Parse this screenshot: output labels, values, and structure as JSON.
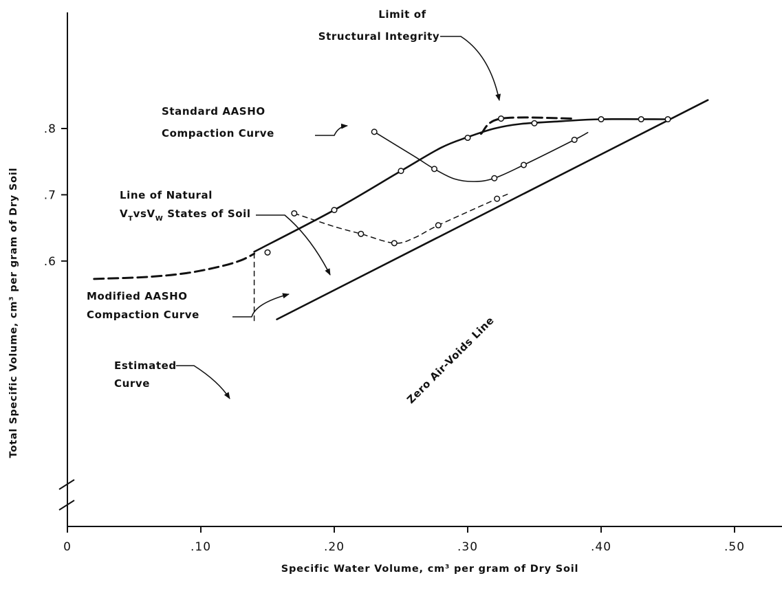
{
  "chart_data": {
    "type": "line",
    "title": "",
    "xlabel": "Specific Water Volume, cm³ per gram of Dry Soil",
    "ylabel": "Total Specific Volume, cm³ per gram of Dry Soil",
    "xlim": [
      0,
      0.54
    ],
    "ylim": [
      0.51,
      0.895
    ],
    "axis_break_y": true,
    "grid": false,
    "x_ticks": [
      {
        "value": 0,
        "label": "0"
      },
      {
        "value": 0.1,
        "label": ".10"
      },
      {
        "value": 0.2,
        "label": ".20"
      },
      {
        "value": 0.3,
        "label": ".30"
      },
      {
        "value": 0.4,
        "label": ".40"
      },
      {
        "value": 0.5,
        "label": ".50"
      }
    ],
    "y_ticks": [
      {
        "value": 0.6,
        "label": ".6"
      },
      {
        "value": 0.7,
        "label": ".7"
      },
      {
        "value": 0.8,
        "label": ".8"
      }
    ],
    "series": [
      {
        "key": "natural",
        "style": "solid-thick",
        "markers": true,
        "points": [
          [
            0.15,
            0.613
          ],
          [
            0.2,
            0.677
          ],
          [
            0.25,
            0.736
          ],
          [
            0.3,
            0.786
          ],
          [
            0.35,
            0.808
          ],
          [
            0.4,
            0.814
          ],
          [
            0.43,
            0.814
          ],
          [
            0.45,
            0.814
          ]
        ],
        "curve": [
          [
            0.14,
            0.614
          ],
          [
            0.2,
            0.677
          ],
          [
            0.25,
            0.736
          ],
          [
            0.28,
            0.771
          ],
          [
            0.3,
            0.787
          ],
          [
            0.32,
            0.8
          ],
          [
            0.34,
            0.807
          ],
          [
            0.37,
            0.811
          ],
          [
            0.4,
            0.814
          ],
          [
            0.45,
            0.814
          ]
        ]
      },
      {
        "key": "estimated",
        "style": "dashed-thick",
        "markers": false,
        "curve": [
          [
            0.02,
            0.573
          ],
          [
            0.06,
            0.576
          ],
          [
            0.09,
            0.582
          ],
          [
            0.115,
            0.592
          ],
          [
            0.13,
            0.601
          ],
          [
            0.14,
            0.611
          ]
        ]
      },
      {
        "key": "standard",
        "style": "solid-thin",
        "markers": true,
        "points": [
          [
            0.23,
            0.795
          ],
          [
            0.275,
            0.739
          ],
          [
            0.32,
            0.725
          ],
          [
            0.342,
            0.745
          ],
          [
            0.38,
            0.783
          ]
        ],
        "curve": [
          [
            0.23,
            0.795
          ],
          [
            0.26,
            0.758
          ],
          [
            0.275,
            0.739
          ],
          [
            0.29,
            0.724
          ],
          [
            0.305,
            0.72
          ],
          [
            0.32,
            0.725
          ],
          [
            0.342,
            0.745
          ],
          [
            0.38,
            0.783
          ],
          [
            0.39,
            0.794
          ]
        ]
      },
      {
        "key": "modified",
        "style": "dashed-thin",
        "markers": true,
        "points": [
          [
            0.17,
            0.672
          ],
          [
            0.22,
            0.641
          ],
          [
            0.245,
            0.627
          ],
          [
            0.278,
            0.654
          ],
          [
            0.322,
            0.694
          ]
        ],
        "curve": [
          [
            0.17,
            0.672
          ],
          [
            0.2,
            0.652
          ],
          [
            0.22,
            0.641
          ],
          [
            0.245,
            0.627
          ],
          [
            0.26,
            0.635
          ],
          [
            0.278,
            0.654
          ],
          [
            0.322,
            0.694
          ],
          [
            0.33,
            0.701
          ]
        ]
      },
      {
        "key": "limit",
        "style": "dashed-thick",
        "markers": true,
        "points": [
          [
            0.325,
            0.815
          ]
        ],
        "curve": [
          [
            0.31,
            0.792
          ],
          [
            0.325,
            0.815
          ],
          [
            0.38,
            0.815
          ]
        ]
      },
      {
        "key": "zero_air_voids",
        "style": "solid-thick",
        "markers": false,
        "curve": [
          [
            0.157,
            0.512
          ],
          [
            0.48,
            0.843
          ]
        ]
      },
      {
        "key": "vertical_ref",
        "style": "dashed-thin",
        "markers": false,
        "curve": [
          [
            0.14,
            0.51
          ],
          [
            0.14,
            0.614
          ]
        ]
      }
    ],
    "annotations": [
      {
        "key": "limit",
        "lines": [
          "Limit of",
          "Structural Integrity"
        ]
      },
      {
        "key": "standard",
        "lines": [
          "Standard AASHO",
          "Compaction Curve"
        ]
      },
      {
        "key": "natural",
        "lines": [
          "Line of Natural",
          "VTvsVW States of Soil"
        ],
        "first_line": "Line of Natural",
        "sub_VT": "V",
        "sub_VT_s": "T",
        "sub_vs": "vs",
        "sub_VW": "V",
        "sub_VW_s": "W",
        "rest": " States of Soil"
      },
      {
        "key": "modified",
        "lines": [
          "Modified AASHO",
          "Compaction Curve"
        ]
      },
      {
        "key": "estimated",
        "lines": [
          "Estimated",
          "Curve"
        ]
      },
      {
        "key": "zero_air_voids",
        "lines": [
          "Zero Air-Voids Line"
        ]
      }
    ]
  }
}
